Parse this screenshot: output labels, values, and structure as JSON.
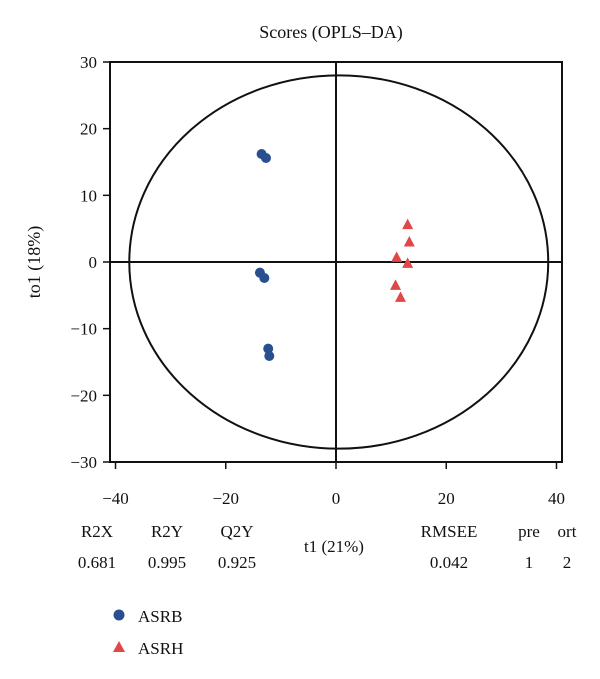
{
  "chart_data": {
    "type": "scatter",
    "title": "Scores (OPLS–DA)",
    "xlabel": "t1 (21%)",
    "ylabel": "to1 (18%)",
    "xlim": [
      -41,
      41
    ],
    "ylim": [
      -30,
      30
    ],
    "xticks": [
      -40,
      -20,
      0,
      20,
      40
    ],
    "xtick_labels": [
      "−40",
      "−20",
      "0",
      "20",
      "40"
    ],
    "yticks": [
      30,
      20,
      10,
      0,
      -10,
      -20,
      -30
    ],
    "ytick_labels": [
      "30",
      "20",
      "10",
      "0",
      "−10",
      "−20",
      "−30"
    ],
    "ellipse": {
      "cx": 0.5,
      "cy": 0,
      "rx": 38,
      "ry": 28
    },
    "series": [
      {
        "name": "ASRB",
        "marker": "circle",
        "color": "#2a4f8f",
        "points": [
          {
            "x": -13.5,
            "y": 16.2
          },
          {
            "x": -12.7,
            "y": 15.6
          },
          {
            "x": -13.8,
            "y": -1.6
          },
          {
            "x": -13.0,
            "y": -2.4
          },
          {
            "x": -12.3,
            "y": -13.0
          },
          {
            "x": -12.1,
            "y": -14.1
          }
        ]
      },
      {
        "name": "ASRH",
        "marker": "triangle",
        "color": "#e04848",
        "points": [
          {
            "x": 13.0,
            "y": 5.6
          },
          {
            "x": 13.3,
            "y": 3.0
          },
          {
            "x": 11.0,
            "y": 0.7
          },
          {
            "x": 13.0,
            "y": -0.2
          },
          {
            "x": 10.8,
            "y": -3.5
          },
          {
            "x": 11.7,
            "y": -5.3
          }
        ]
      }
    ],
    "stats": [
      {
        "label": "R2X",
        "value": "0.681"
      },
      {
        "label": "R2Y",
        "value": "0.995"
      },
      {
        "label": "Q2Y",
        "value": "0.925"
      },
      {
        "label": "RMSEE",
        "value": "0.042"
      },
      {
        "label": "pre",
        "value": "1"
      },
      {
        "label": "ort",
        "value": "2"
      }
    ],
    "legend": {
      "placement": "bottom-left",
      "entries": [
        "ASRB",
        "ASRH"
      ]
    }
  }
}
